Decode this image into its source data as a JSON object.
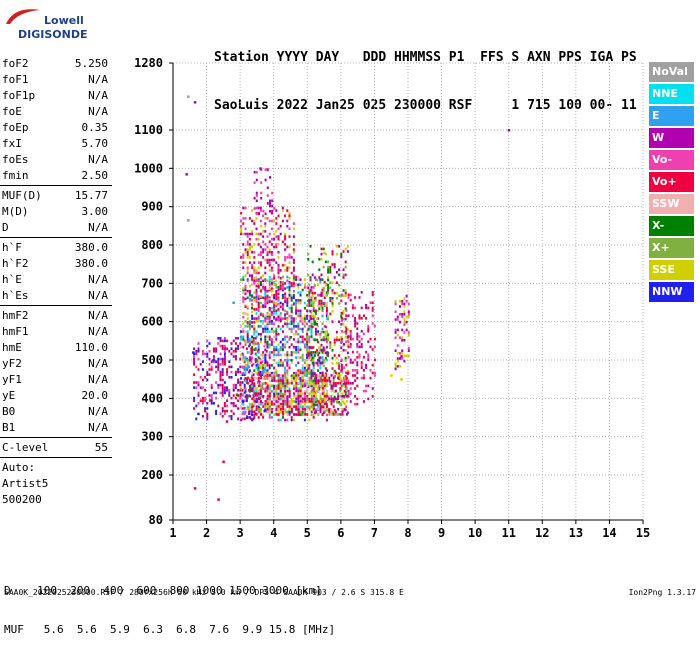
{
  "logo": {
    "line1": "Lowell",
    "line2": "DIGISONDE"
  },
  "header": {
    "line1": "Station YYYY DAY   DDD HHMMSS P1  FFS S AXN PPS IGA PS",
    "line2": "SaoLuis 2022 Jan25 025 230000 RSF     1 715 100 00- 11"
  },
  "params": {
    "group1": [
      {
        "name": "foF2",
        "value": "5.250"
      },
      {
        "name": "foF1",
        "value": "N/A"
      },
      {
        "name": "foF1p",
        "value": "N/A"
      },
      {
        "name": "foE",
        "value": "N/A"
      },
      {
        "name": "foEp",
        "value": "0.35"
      },
      {
        "name": "fxI",
        "value": "5.70"
      },
      {
        "name": "foEs",
        "value": "N/A"
      },
      {
        "name": "fmin",
        "value": "2.50"
      }
    ],
    "group2": [
      {
        "name": "MUF(D)",
        "value": "15.77"
      },
      {
        "name": "M(D)",
        "value": "3.00"
      },
      {
        "name": "D",
        "value": "N/A"
      }
    ],
    "group3": [
      {
        "name": "h`F",
        "value": "380.0"
      },
      {
        "name": "h`F2",
        "value": "380.0"
      },
      {
        "name": "h`E",
        "value": "N/A"
      },
      {
        "name": "h`Es",
        "value": "N/A"
      }
    ],
    "group4": [
      {
        "name": "hmF2",
        "value": "N/A"
      },
      {
        "name": "hmF1",
        "value": "N/A"
      },
      {
        "name": "hmE",
        "value": "110.0"
      },
      {
        "name": "yF2",
        "value": "N/A"
      },
      {
        "name": "yF1",
        "value": "N/A"
      },
      {
        "name": "yE",
        "value": "20.0"
      },
      {
        "name": "B0",
        "value": "N/A"
      },
      {
        "name": "B1",
        "value": "N/A"
      }
    ],
    "clevel": {
      "name": "C-level",
      "value": "55"
    },
    "auto": [
      "Auto:",
      "Artist5",
      "500200"
    ]
  },
  "legend": [
    {
      "label": "NoVal",
      "color": "#a0a0a0"
    },
    {
      "label": "NNE",
      "color": "#00e0f0"
    },
    {
      "label": "E",
      "color": "#30a0f0"
    },
    {
      "label": "W",
      "color": "#b000b0"
    },
    {
      "label": "Vo-",
      "color": "#f040b0"
    },
    {
      "label": "Vo+",
      "color": "#f00040"
    },
    {
      "label": "SSW",
      "color": "#f0b0b0"
    },
    {
      "label": "X-",
      "color": "#008000"
    },
    {
      "label": "X+",
      "color": "#80b040"
    },
    {
      "label": "SSE",
      "color": "#d0d000"
    },
    {
      "label": "NNW",
      "color": "#2020f0"
    }
  ],
  "muf_table": {
    "line1": "D    100  200  400  600  800 1000 1500 3000 [km]",
    "line2": "MUF   5.6  5.6  5.9  6.3  6.8  7.6  9.9 15.8 [MHz]"
  },
  "footer": "SAA0K_2022025230000.RSF / 280fx256h 50 kHz 5.0 km / DPS-4 SAA0K 903 / 2.6 S 315.8 E",
  "version": "Ion2Png 1.3.17",
  "chart_data": {
    "type": "scatter",
    "xlim": [
      1,
      15
    ],
    "ylim": [
      80,
      1280
    ],
    "x_ticks": [
      1,
      2,
      3,
      4,
      5,
      6,
      7,
      8,
      9,
      10,
      11,
      12,
      13,
      14,
      15
    ],
    "y_ticks": [
      80,
      200,
      300,
      400,
      500,
      600,
      700,
      800,
      900,
      1000,
      1100,
      1280
    ],
    "grid": true,
    "legend_position": "right",
    "series": [
      {
        "name": "NoVal",
        "points": [
          [
            1.45,
            1190
          ],
          [
            1.45,
            865
          ]
        ]
      },
      {
        "name": "W",
        "points": [
          [
            1.4,
            985
          ],
          [
            1.65,
            1175
          ],
          [
            11.0,
            1100
          ],
          [
            3.6,
            1000
          ],
          [
            7.8,
            510
          ]
        ]
      },
      {
        "name": "Vo+",
        "points": [
          [
            1.65,
            165
          ],
          [
            2.35,
            135
          ],
          [
            2.5,
            235
          ],
          [
            2.1,
            395
          ],
          [
            2.6,
            340
          ]
        ]
      },
      {
        "name": "NNW",
        "points": [
          [
            1.6,
            520
          ],
          [
            1.75,
            360
          ],
          [
            2.2,
            500
          ],
          [
            3.2,
            350
          ]
        ]
      },
      {
        "name": "E",
        "points": [
          [
            2.8,
            650
          ],
          [
            3.3,
            660
          ]
        ]
      },
      {
        "name": "X-",
        "points": [
          [
            2.9,
            410
          ],
          [
            4.5,
            560
          ]
        ]
      },
      {
        "name": "SSE",
        "points": [
          [
            7.8,
            450
          ],
          [
            7.5,
            460
          ],
          [
            5.5,
            780
          ]
        ]
      }
    ],
    "clusters": [
      {
        "x": [
          1.6,
          3.8
        ],
        "y": [
          345,
          560
        ],
        "density": 0.35,
        "colors": [
          "#b000b0",
          "#f00040",
          "#2020f0",
          "#f040b0"
        ]
      },
      {
        "x": [
          3.0,
          5.6
        ],
        "y": [
          345,
          720
        ],
        "density": 0.55,
        "colors": [
          "#b000b0",
          "#f00040",
          "#f040b0",
          "#2020f0",
          "#d0d000",
          "#008000",
          "#80b040",
          "#30a0f0",
          "#00e0f0",
          "#f0b0b0"
        ]
      },
      {
        "x": [
          3.0,
          4.6
        ],
        "y": [
          600,
          900
        ],
        "density": 0.35,
        "colors": [
          "#b000b0",
          "#f040b0",
          "#f00040",
          "#d0d000"
        ]
      },
      {
        "x": [
          3.4,
          4.0
        ],
        "y": [
          880,
          1000
        ],
        "density": 0.2,
        "colors": [
          "#b000b0",
          "#f040b0"
        ]
      },
      {
        "x": [
          5.0,
          6.2
        ],
        "y": [
          360,
          800
        ],
        "density": 0.3,
        "colors": [
          "#b000b0",
          "#d0d000",
          "#f00040",
          "#80b040",
          "#008000"
        ]
      },
      {
        "x": [
          6.0,
          7.0
        ],
        "y": [
          380,
          680
        ],
        "density": 0.25,
        "colors": [
          "#b000b0",
          "#f00040",
          "#f040b0"
        ]
      },
      {
        "x": [
          3.2,
          6.2
        ],
        "y": [
          360,
          470
        ],
        "density": 0.6,
        "colors": [
          "#f00040",
          "#f00040",
          "#d0d000",
          "#b000b0",
          "#80b040",
          "#f0b0b0"
        ]
      },
      {
        "x": [
          7.6,
          8.0
        ],
        "y": [
          480,
          670
        ],
        "density": 0.3,
        "colors": [
          "#b000b0",
          "#f040b0",
          "#d0d000"
        ]
      }
    ]
  }
}
